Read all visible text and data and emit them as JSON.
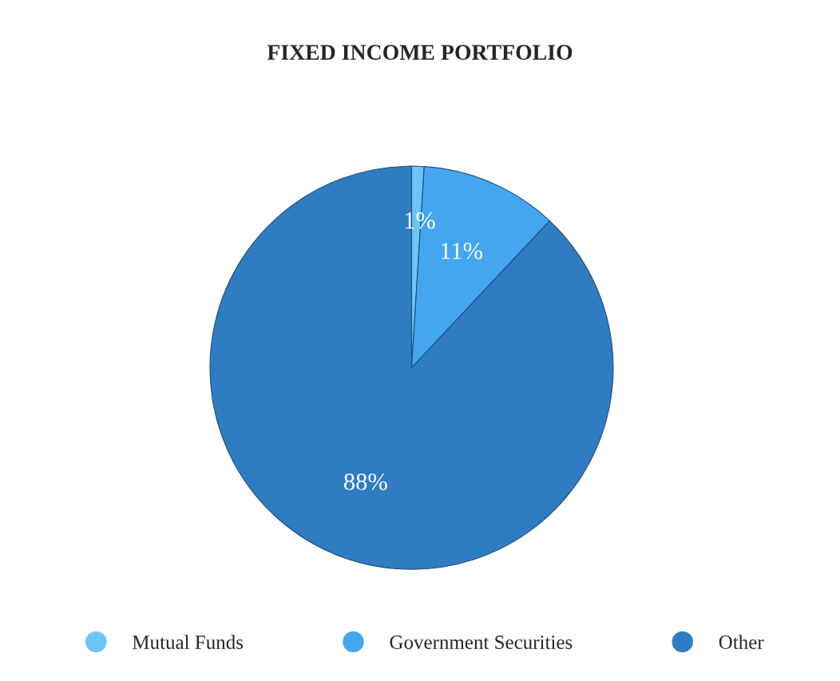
{
  "chart_data": {
    "type": "pie",
    "title": "FIXED INCOME PORTFOLIO",
    "categories": [
      "Mutual Funds",
      "Government Securities",
      "Other"
    ],
    "values": [
      1,
      11,
      88
    ],
    "colors": [
      "#6cc4f8",
      "#45a6f0",
      "#2f7cc2"
    ],
    "value_labels": [
      "1%",
      "11%",
      "88%"
    ],
    "legend": "bottom"
  }
}
